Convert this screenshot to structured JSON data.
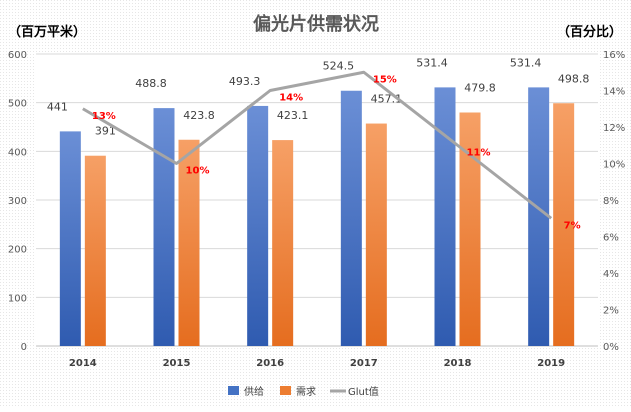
{
  "chart_data": {
    "type": "bar",
    "title": "偏光片供需状况",
    "ylabel_left": "（百万平米）",
    "ylabel_right": "（百分比）",
    "categories": [
      "2014",
      "2015",
      "2016",
      "2017",
      "2018",
      "2019"
    ],
    "ylim_left": [
      0,
      600
    ],
    "yticks_left": [
      "0",
      "100",
      "200",
      "300",
      "400",
      "500",
      "600"
    ],
    "ylim_right": [
      0,
      16
    ],
    "yticks_right": [
      "0%",
      "2%",
      "4%",
      "6%",
      "8%",
      "10%",
      "12%",
      "14%",
      "16%"
    ],
    "series": [
      {
        "name": "供给",
        "kind": "bar",
        "color": "#4472C4",
        "values": [
          441,
          488.8,
          493.3,
          524.5,
          531.4,
          531.4
        ],
        "labels": [
          "441",
          "488.8",
          "493.3",
          "524.5",
          "531.4",
          "531.4"
        ]
      },
      {
        "name": "需求",
        "kind": "bar",
        "color": "#ED7D31",
        "values": [
          391,
          423.8,
          423.1,
          457.1,
          479.8,
          498.8
        ],
        "labels": [
          "391",
          "423.8",
          "423.1",
          "457.1",
          "479.8",
          "498.8"
        ]
      },
      {
        "name": "Glut值",
        "kind": "line",
        "axis": "right",
        "color": "#A5A5A5",
        "label_color": "#FF0000",
        "values": [
          13,
          10,
          14,
          15,
          11,
          7
        ],
        "labels": [
          "13%",
          "10%",
          "14%",
          "15%",
          "11%",
          "7%"
        ]
      }
    ],
    "legend": {
      "position": "bottom"
    },
    "grid": true
  }
}
